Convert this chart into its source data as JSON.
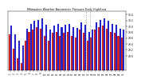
{
  "title": "Milwaukee Weather Barometric Pressure Daily High/Low",
  "days": [
    "1",
    "2",
    "3",
    "4",
    "5",
    "6",
    "7",
    "8",
    "9",
    "10",
    "11",
    "12",
    "13",
    "14",
    "15",
    "16",
    "17",
    "18",
    "19",
    "20",
    "21",
    "22",
    "23",
    "24",
    "25",
    "26",
    "27",
    "28",
    "29",
    "30"
  ],
  "highs": [
    30.02,
    29.72,
    29.5,
    29.35,
    29.92,
    30.08,
    30.18,
    30.22,
    30.28,
    30.05,
    29.88,
    30.02,
    30.08,
    29.98,
    30.04,
    30.08,
    29.98,
    29.94,
    30.12,
    30.04,
    29.82,
    29.88,
    30.12,
    30.22,
    30.28,
    30.18,
    30.08,
    30.04,
    29.92,
    29.88
  ],
  "lows": [
    29.72,
    29.25,
    28.92,
    28.75,
    29.52,
    29.82,
    29.88,
    29.98,
    29.92,
    29.68,
    29.52,
    29.78,
    29.82,
    29.68,
    29.78,
    29.82,
    29.68,
    29.62,
    29.88,
    29.78,
    29.52,
    29.62,
    29.88,
    29.98,
    30.02,
    29.92,
    29.82,
    29.78,
    29.68,
    29.62
  ],
  "high_color": "#2222cc",
  "low_color": "#cc2222",
  "bg_color": "#ffffff",
  "plot_bg": "#ffffff",
  "ylim_min": 28.5,
  "ylim_max": 30.5,
  "ytick_labels": [
    "29.0",
    "29.2",
    "29.4",
    "29.6",
    "29.8",
    "30.0",
    "30.2",
    "30.4"
  ],
  "ytick_vals": [
    29.0,
    29.2,
    29.4,
    29.6,
    29.8,
    30.0,
    30.2,
    30.4
  ],
  "dashed_lines": [
    20,
    21
  ],
  "bar_width": 0.42,
  "n_bars": 30
}
